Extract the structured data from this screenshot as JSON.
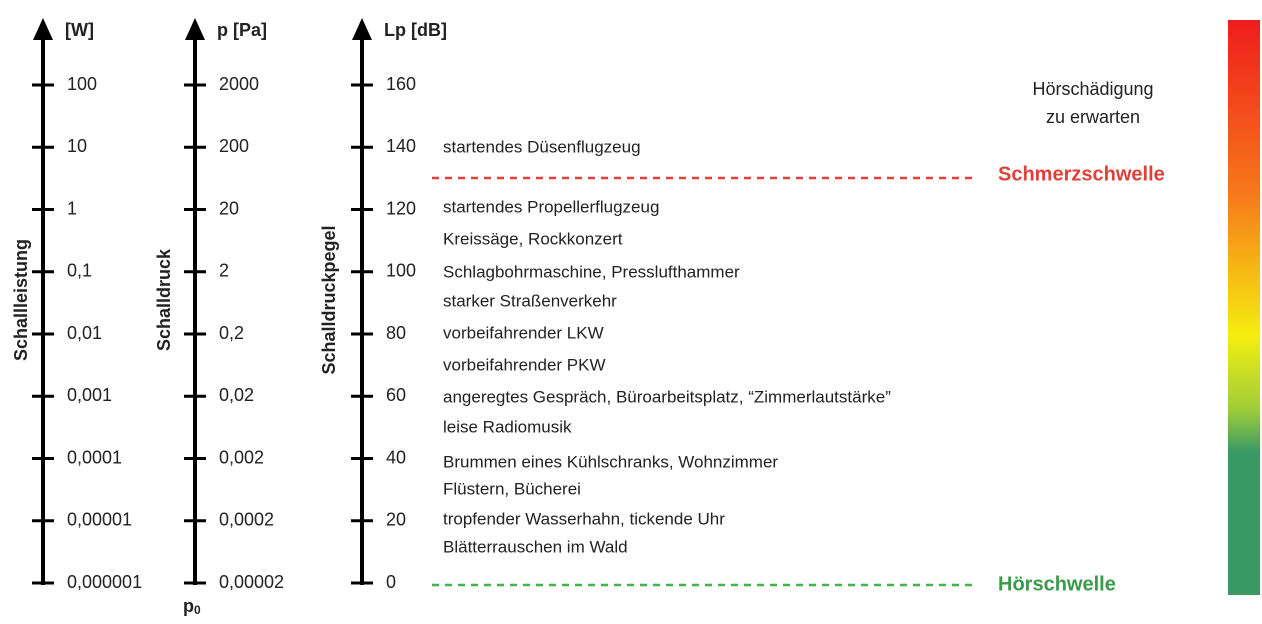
{
  "axes": [
    {
      "title": "[W]",
      "label": "Schallleistung",
      "ticks": [
        "100",
        "10",
        "1",
        "0,1",
        "0,01",
        "0,001",
        "0,0001",
        "0,00001",
        "0,000001"
      ]
    },
    {
      "title": "p [Pa]",
      "label": "Schalldruck",
      "ticks": [
        "2000",
        "200",
        "20",
        "2",
        "0,2",
        "0,02",
        "0,002",
        "0,0002",
        "0,00002"
      ],
      "footnote": "p",
      "footnote_sub": "0"
    },
    {
      "title": "Lp [dB]",
      "label": "Schalldruckpegel",
      "ticks": [
        "160",
        "140",
        "120",
        "100",
        "80",
        "60",
        "40",
        "20",
        "0"
      ]
    }
  ],
  "examples": [
    "startendes Düsenflugzeug",
    "startendes Propellerflugzeug",
    "Kreissäge, Rockkonzert",
    "Schlagbohrmaschine, Presslufthammer",
    "starker Straßenverkehr",
    "vorbeifahrender LKW",
    "vorbeifahrender PKW",
    "angeregtes Gespräch, Büroarbeitsplatz, “Zimmerlautstärke”",
    "leise Radiomusik",
    "Brummen eines Kühlschranks, Wohnzimmer",
    "Flüstern, Bücherei",
    "tropfender Wasserhahn, tickende Uhr",
    "Blätterrauschen im Wald"
  ],
  "thresholds": {
    "pain": "Schmerzschwelle",
    "hearing": "Hörschwelle"
  },
  "damage": [
    "Hörschädigung",
    "zu erwarten"
  ]
}
